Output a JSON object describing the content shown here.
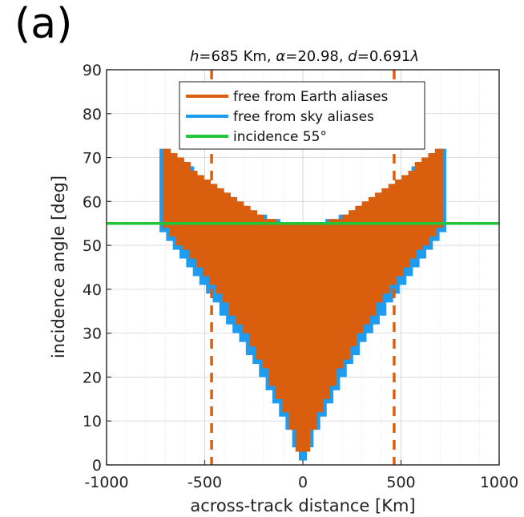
{
  "panel_label": "(a)",
  "chart_data": {
    "type": "bar",
    "title": "h=685 Km, α=20.98,  d=0.691λ",
    "title_parts": {
      "h": "h",
      "h_rest": "=685 Km, ",
      "alpha": "α",
      "alpha_rest": "=20.98,  ",
      "d": "d",
      "d_rest": "=0.691",
      "lambda": "λ"
    },
    "xlabel": "across-track distance [Km]",
    "ylabel": "incidence angle  [deg]",
    "xlim": [
      -1000,
      1000
    ],
    "ylim": [
      0,
      90
    ],
    "xticks": [
      -1000,
      -500,
      0,
      500,
      1000
    ],
    "yticks": [
      0,
      10,
      20,
      30,
      40,
      50,
      60,
      70,
      80,
      90
    ],
    "grid": true,
    "legend_position": "top-center",
    "legend": [
      {
        "label": "free from Earth aliases",
        "color": "#d95f0e"
      },
      {
        "label": "free from sky aliases",
        "color": "#1f9bf0"
      },
      {
        "label": "incidence 55°",
        "color": "#22c43a"
      }
    ],
    "reference_line": {
      "label": "incidence 55°",
      "y": 55,
      "color": "#22c43a"
    },
    "dashed_lines": [
      {
        "x": -465
      },
      {
        "x": 465
      }
    ],
    "dashed_color": "#d95f0e",
    "series": [
      {
        "name": "free from sky aliases",
        "color": "#1f9bf0",
        "x": [
          -710,
          -676,
          -642,
          -608,
          -574,
          -540,
          -507,
          -473,
          -439,
          -405,
          -371,
          -338,
          -304,
          -270,
          -236,
          -203,
          -169,
          -135,
          -101,
          -68,
          -34,
          0,
          34,
          68,
          101,
          135,
          169,
          203,
          236,
          270,
          304,
          338,
          371,
          405,
          439,
          473,
          507,
          540,
          574,
          608,
          642,
          676,
          710
        ],
        "y_high": [
          72,
          71,
          70,
          69,
          68,
          66,
          65,
          64,
          63,
          62,
          61,
          60,
          59,
          58,
          57,
          57,
          56,
          56,
          55,
          55,
          55,
          55,
          55,
          55,
          55,
          56,
          56,
          57,
          57,
          58,
          59,
          60,
          61,
          62,
          63,
          64,
          65,
          66,
          68,
          69,
          70,
          71,
          72
        ],
        "y_low": [
          53,
          51,
          49,
          47,
          45,
          43,
          41,
          39,
          37,
          34,
          32,
          30,
          28,
          25,
          23,
          20,
          17,
          14,
          11,
          8,
          4,
          1,
          4,
          8,
          11,
          14,
          17,
          20,
          23,
          25,
          28,
          30,
          32,
          34,
          37,
          39,
          41,
          43,
          45,
          47,
          49,
          51,
          53
        ]
      },
      {
        "name": "free from Earth aliases",
        "color": "#d95f0e",
        "x": [
          -693,
          -659,
          -625,
          -591,
          -557,
          -523,
          -490,
          -456,
          -422,
          -388,
          -355,
          -321,
          -287,
          -253,
          -220,
          -186,
          -152,
          -118,
          -84,
          -51,
          -17,
          17,
          51,
          84,
          118,
          152,
          186,
          220,
          253,
          287,
          321,
          355,
          388,
          422,
          456,
          490,
          523,
          557,
          591,
          625,
          659,
          693
        ],
        "y_high": [
          72,
          71,
          70,
          69,
          67,
          66,
          65,
          64,
          63,
          62,
          61,
          60,
          59,
          58,
          57,
          56,
          56,
          55,
          55,
          55,
          55,
          55,
          55,
          55,
          55,
          56,
          56,
          57,
          58,
          59,
          60,
          61,
          62,
          63,
          64,
          65,
          66,
          67,
          69,
          70,
          71,
          72
        ],
        "y_low": [
          54,
          52,
          50,
          49,
          47,
          45,
          43,
          41,
          39,
          37,
          34,
          32,
          30,
          27,
          24,
          22,
          18,
          15,
          12,
          8,
          3,
          3,
          8,
          12,
          15,
          18,
          22,
          24,
          27,
          30,
          32,
          34,
          37,
          39,
          41,
          43,
          45,
          47,
          49,
          50,
          52,
          54
        ]
      }
    ]
  }
}
